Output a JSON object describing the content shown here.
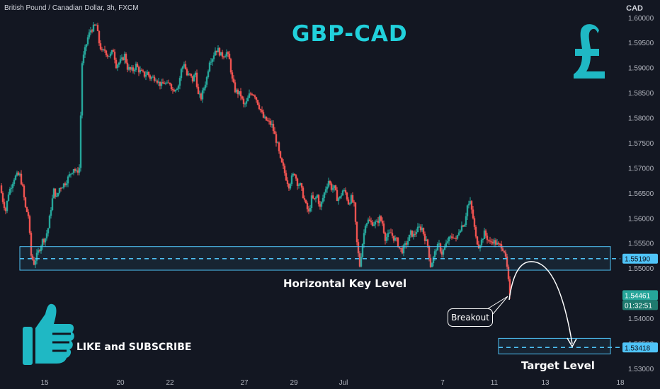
{
  "header": {
    "symbol_line": "British Pound / Canadian Dollar, 3h, FXCM",
    "currency": "CAD"
  },
  "title": "GBP-CAD",
  "colors": {
    "background": "#131722",
    "up": "#26a69a",
    "down": "#ef5350",
    "accent": "#21d1dc",
    "zone": "#4fc3f7"
  },
  "annotations": {
    "key_level_label": "Horizontal Key Level",
    "breakout_label": "Breakout",
    "target_label": "Target Level",
    "cta": "LIKE and SUBSCRIBE"
  },
  "icons": {
    "currency": "pound-sign-icon",
    "thumbs_up": "thumbs-up-icon"
  },
  "price_badges": {
    "key_level": "1.55190",
    "target_level": "1.53418",
    "current_price": "1.54461",
    "countdown": "01:32:51"
  },
  "chart_data": {
    "type": "candlestick",
    "y_ticks": [
      "1.60000",
      "1.59500",
      "1.59000",
      "1.58500",
      "1.58000",
      "1.57500",
      "1.57000",
      "1.56500",
      "1.56000",
      "1.55500",
      "1.55000",
      "1.54500",
      "1.54000",
      "1.53500",
      "1.53000"
    ],
    "ylim": [
      1.529,
      1.6035
    ],
    "x_ticks": [
      "15",
      "20",
      "22",
      "27",
      "29",
      "Jul",
      "7",
      "11",
      "13",
      "18"
    ],
    "key_level": {
      "price": 1.5519,
      "zone": [
        1.5496,
        1.5543
      ]
    },
    "target_level": {
      "price": 1.53418,
      "zone": [
        1.5329,
        1.536
      ]
    },
    "last_price": 1.54461,
    "close_path": [
      [
        0,
        1.5665
      ],
      [
        4,
        1.5635
      ],
      [
        8,
        1.5615
      ],
      [
        12,
        1.565
      ],
      [
        16,
        1.5665
      ],
      [
        20,
        1.568
      ],
      [
        24,
        1.5685
      ],
      [
        28,
        1.5685
      ],
      [
        32,
        1.566
      ],
      [
        36,
        1.562
      ],
      [
        40,
        1.5605
      ],
      [
        44,
        1.5525
      ],
      [
        48,
        1.551
      ],
      [
        52,
        1.5525
      ],
      [
        56,
        1.554
      ],
      [
        60,
        1.5555
      ],
      [
        64,
        1.556
      ],
      [
        68,
        1.558
      ],
      [
        72,
        1.562
      ],
      [
        76,
        1.5655
      ],
      [
        80,
        1.564
      ],
      [
        84,
        1.566
      ],
      [
        88,
        1.5665
      ],
      [
        92,
        1.567
      ],
      [
        96,
        1.568
      ],
      [
        100,
        1.569
      ],
      [
        104,
        1.57
      ],
      [
        108,
        1.569
      ],
      [
        112,
        1.57
      ],
      [
        116,
        1.591
      ],
      [
        120,
        1.5935
      ],
      [
        124,
        1.596
      ],
      [
        128,
        1.5975
      ],
      [
        132,
        1.598
      ],
      [
        136,
        1.5985
      ],
      [
        140,
        1.595
      ],
      [
        144,
        1.593
      ],
      [
        148,
        1.5935
      ],
      [
        152,
        1.5925
      ],
      [
        156,
        1.5925
      ],
      [
        160,
        1.5935
      ],
      [
        164,
        1.5905
      ],
      [
        168,
        1.591
      ],
      [
        172,
        1.5915
      ],
      [
        176,
        1.5925
      ],
      [
        180,
        1.59
      ],
      [
        184,
        1.5895
      ],
      [
        188,
        1.5895
      ],
      [
        192,
        1.5905
      ],
      [
        196,
        1.5895
      ],
      [
        200,
        1.589
      ],
      [
        204,
        1.5885
      ],
      [
        208,
        1.589
      ],
      [
        212,
        1.588
      ],
      [
        216,
        1.588
      ],
      [
        220,
        1.588
      ],
      [
        224,
        1.587
      ],
      [
        228,
        1.5865
      ],
      [
        232,
        1.587
      ],
      [
        236,
        1.5865
      ],
      [
        240,
        1.587
      ],
      [
        244,
        1.5855
      ],
      [
        248,
        1.586
      ],
      [
        252,
        1.5865
      ],
      [
        256,
        1.5895
      ],
      [
        260,
        1.591
      ],
      [
        264,
        1.5885
      ],
      [
        268,
        1.5885
      ],
      [
        272,
        1.5875
      ],
      [
        276,
        1.589
      ],
      [
        280,
        1.5845
      ],
      [
        284,
        1.584
      ],
      [
        288,
        1.586
      ],
      [
        292,
        1.588
      ],
      [
        296,
        1.5915
      ],
      [
        300,
        1.592
      ],
      [
        304,
        1.5935
      ],
      [
        308,
        1.5935
      ],
      [
        312,
        1.5925
      ],
      [
        316,
        1.5925
      ],
      [
        320,
        1.593
      ],
      [
        324,
        1.5915
      ],
      [
        328,
        1.5875
      ],
      [
        332,
        1.5855
      ],
      [
        336,
        1.585
      ],
      [
        340,
        1.5845
      ],
      [
        344,
        1.5825
      ],
      [
        348,
        1.583
      ],
      [
        352,
        1.5845
      ],
      [
        356,
        1.585
      ],
      [
        360,
        1.5845
      ],
      [
        364,
        1.583
      ],
      [
        368,
        1.5815
      ],
      [
        372,
        1.58
      ],
      [
        376,
        1.5795
      ],
      [
        380,
        1.579
      ],
      [
        384,
        1.5785
      ],
      [
        388,
        1.5765
      ],
      [
        392,
        1.5745
      ],
      [
        396,
        1.5715
      ],
      [
        400,
        1.57
      ],
      [
        404,
        1.568
      ],
      [
        408,
        1.5665
      ],
      [
        412,
        1.568
      ],
      [
        416,
        1.569
      ],
      [
        420,
        1.567
      ],
      [
        424,
        1.5665
      ],
      [
        428,
        1.5645
      ],
      [
        432,
        1.5625
      ],
      [
        436,
        1.561
      ],
      [
        440,
        1.564
      ],
      [
        444,
        1.5635
      ],
      [
        448,
        1.5645
      ],
      [
        452,
        1.562
      ],
      [
        456,
        1.564
      ],
      [
        460,
        1.566
      ],
      [
        464,
        1.5675
      ],
      [
        468,
        1.566
      ],
      [
        472,
        1.566
      ],
      [
        476,
        1.564
      ],
      [
        480,
        1.564
      ],
      [
        484,
        1.5655
      ],
      [
        488,
        1.565
      ],
      [
        492,
        1.563
      ],
      [
        496,
        1.564
      ],
      [
        500,
        1.5625
      ],
      [
        504,
        1.555
      ],
      [
        508,
        1.5505
      ],
      [
        512,
        1.555
      ],
      [
        516,
        1.559
      ],
      [
        520,
        1.5595
      ],
      [
        524,
        1.559
      ],
      [
        528,
        1.559
      ],
      [
        532,
        1.559
      ],
      [
        536,
        1.56
      ],
      [
        540,
        1.559
      ],
      [
        544,
        1.556
      ],
      [
        548,
        1.5565
      ],
      [
        552,
        1.557
      ],
      [
        556,
        1.556
      ],
      [
        560,
        1.5555
      ],
      [
        564,
        1.554
      ],
      [
        568,
        1.5535
      ],
      [
        572,
        1.5545
      ],
      [
        576,
        1.5555
      ],
      [
        580,
        1.557
      ],
      [
        584,
        1.5565
      ],
      [
        588,
        1.5575
      ],
      [
        592,
        1.558
      ],
      [
        596,
        1.558
      ],
      [
        600,
        1.556
      ],
      [
        604,
        1.5545
      ],
      [
        608,
        1.5505
      ],
      [
        612,
        1.552
      ],
      [
        616,
        1.554
      ],
      [
        620,
        1.5545
      ],
      [
        624,
        1.553
      ],
      [
        628,
        1.554
      ],
      [
        632,
        1.5555
      ],
      [
        636,
        1.556
      ],
      [
        640,
        1.5565
      ],
      [
        644,
        1.5555
      ],
      [
        648,
        1.5575
      ],
      [
        652,
        1.5585
      ],
      [
        656,
        1.559
      ],
      [
        660,
        1.5625
      ],
      [
        664,
        1.563
      ],
      [
        668,
        1.56
      ],
      [
        672,
        1.556
      ],
      [
        676,
        1.5545
      ],
      [
        680,
        1.5555
      ],
      [
        684,
        1.557
      ],
      [
        688,
        1.556
      ],
      [
        692,
        1.555
      ],
      [
        696,
        1.5555
      ],
      [
        700,
        1.555
      ],
      [
        704,
        1.5545
      ],
      [
        708,
        1.5545
      ],
      [
        712,
        1.5535
      ],
      [
        716,
        1.55
      ],
      [
        720,
        1.5446
      ]
    ]
  }
}
